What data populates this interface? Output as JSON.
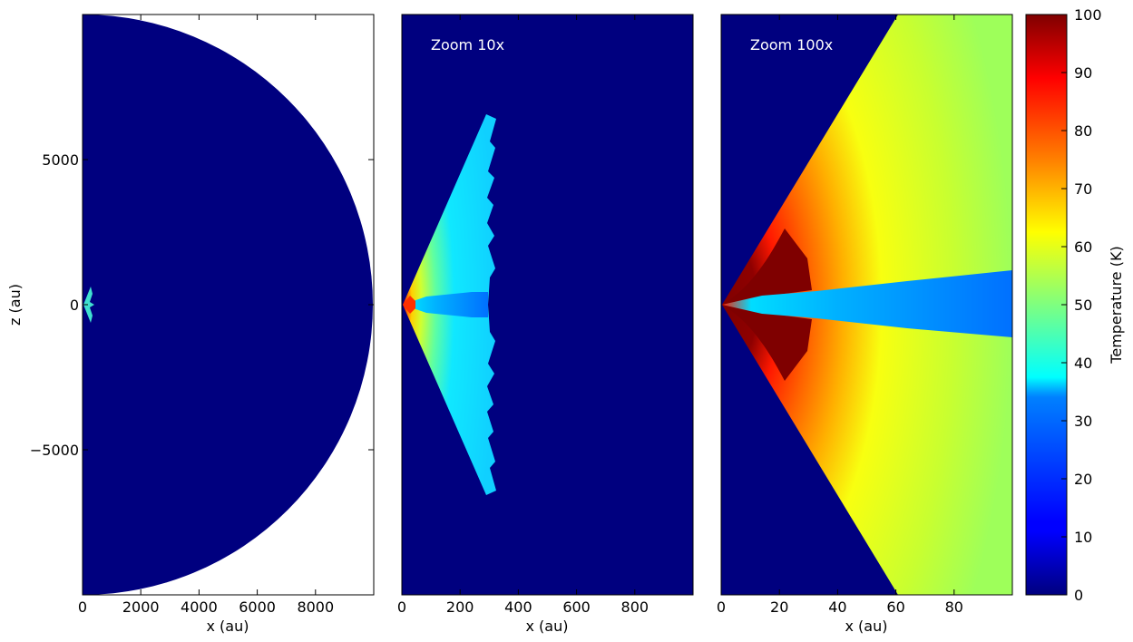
{
  "colors": {
    "colormap": "jet",
    "background": "#00007f"
  },
  "chart_data": [
    {
      "type": "heatmap",
      "panel": "full",
      "xlabel": "x (au)",
      "ylabel": "z (au)",
      "xlim": [
        0,
        10000
      ],
      "ylim": [
        -10000,
        10000
      ],
      "xticks": [
        0,
        2000,
        4000,
        6000,
        8000
      ],
      "xtick_labels": [
        "0",
        "2000",
        "4000",
        "6000",
        "8000"
      ],
      "yticks": [
        5000,
        0,
        -5000
      ],
      "ytick_labels": [
        "5000",
        "0",
        "−5000"
      ],
      "domain_radius_au": 10000,
      "values_note_K": {
        "domain_background": 0,
        "inner_envelope_max_extent_au": 700
      },
      "annotation": ""
    },
    {
      "type": "heatmap",
      "panel": "zoom10",
      "xlabel": "x (au)",
      "ylabel": "",
      "xlim": [
        0,
        1000
      ],
      "ylim": [
        -1000,
        1000
      ],
      "xticks": [
        0,
        200,
        400,
        600,
        800
      ],
      "xtick_labels": [
        "0",
        "200",
        "400",
        "600",
        "800"
      ],
      "annotation": "Zoom 10x",
      "outflow_extent_au": 300
    },
    {
      "type": "heatmap",
      "panel": "zoom100",
      "xlabel": "x (au)",
      "ylabel": "",
      "xlim": [
        0,
        100
      ],
      "ylim": [
        -100,
        100
      ],
      "xticks": [
        0,
        20,
        40,
        60,
        80
      ],
      "xtick_labels": [
        "0",
        "20",
        "40",
        "60",
        "80"
      ],
      "annotation": "Zoom 100x"
    },
    {
      "type": "colorbar",
      "label": "Temperature (K)",
      "range": [
        0,
        100
      ],
      "ticks": [
        100,
        90,
        80,
        70,
        60,
        50,
        40,
        30,
        20,
        10,
        0
      ],
      "tick_labels": [
        "100",
        "90",
        "80",
        "70",
        "60",
        "50",
        "40",
        "30",
        "20",
        "10",
        "0"
      ]
    }
  ]
}
